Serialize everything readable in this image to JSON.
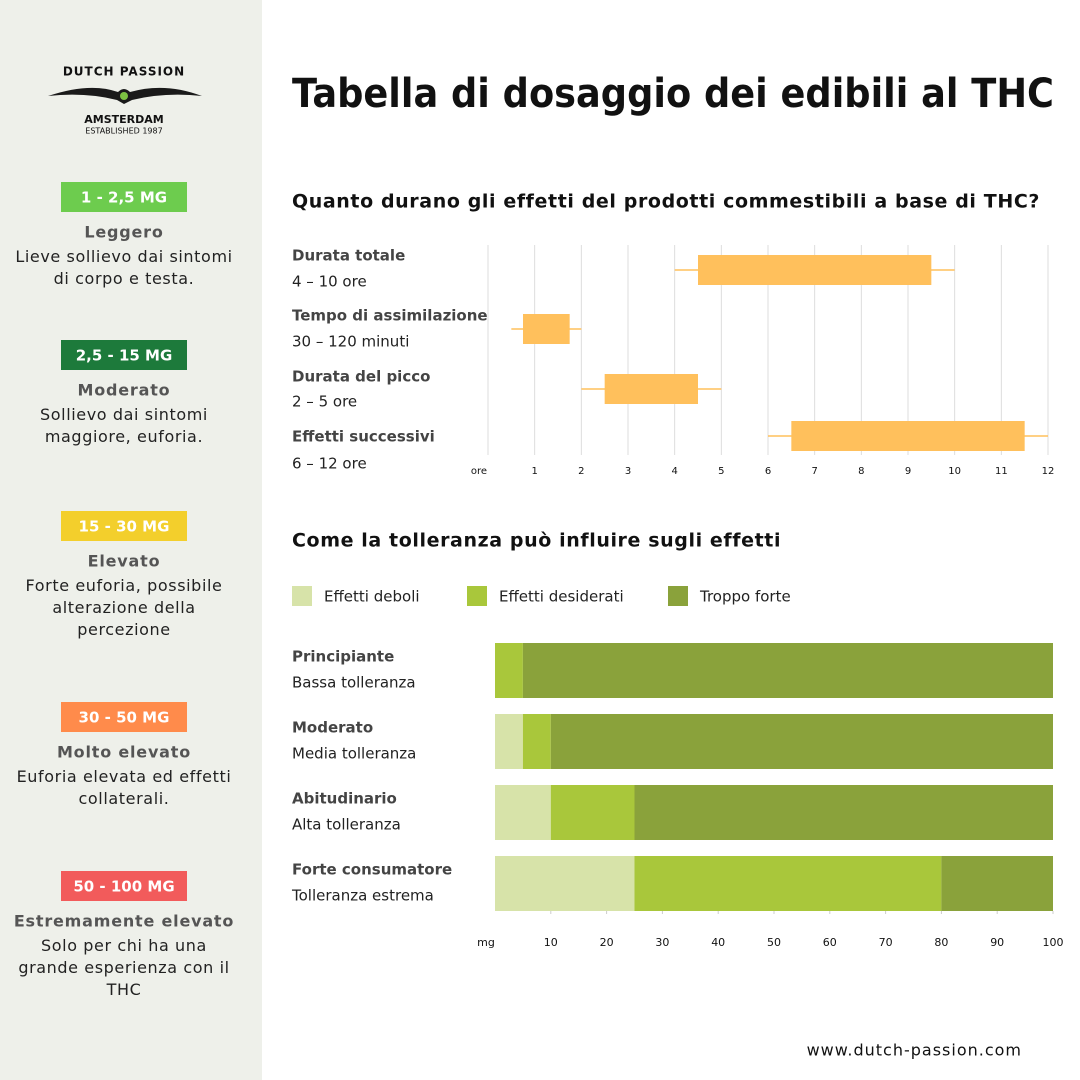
{
  "logo": {
    "brand": "DUTCH PASSION",
    "city": "AMSTERDAM",
    "established": "ESTABLISHED 1987"
  },
  "title": "Tabella di dosaggio dei edibili al THC",
  "sidebar": {
    "levels": [
      {
        "dose": "1 - 2,5 MG",
        "color": "#6dcc4e",
        "name": "Leggero",
        "description": "Lieve sollievo dai sintomi di corpo e testa."
      },
      {
        "dose": "2,5 - 15 MG",
        "color": "#1d7a3b",
        "name": "Moderato",
        "description": "Sollievo dai sintomi maggiore, euforia."
      },
      {
        "dose": "15 - 30 MG",
        "color": "#f3cf2c",
        "name": "Elevato",
        "description": "Forte euforia, possibile alterazione della percezione"
      },
      {
        "dose": "30 - 50 MG",
        "color": "#ff8b4b",
        "name": "Molto elevato",
        "description": "Euforia elevata ed effetti collaterali."
      },
      {
        "dose": "50 - 100 MG",
        "color": "#f25b5b",
        "name": "Estremamente elevato",
        "description": "Solo per chi ha una grande esperienza con il THC"
      }
    ]
  },
  "chart_data": [
    {
      "type": "box",
      "title": "Quanto durano gli effetti del prodotti commestibili a base di THC?",
      "categories": [
        "Durata totale",
        "Tempo di assimilazione",
        "Durata del picco",
        "Effetti successivi"
      ],
      "sublabels": [
        "4 – 10 ore",
        "30 – 120 minuti",
        "2 – 5 ore",
        "6 – 12 ore"
      ],
      "low": [
        4,
        0.5,
        2,
        6
      ],
      "q1": [
        4.5,
        0.75,
        2.5,
        6.5
      ],
      "q3": [
        9.5,
        1.75,
        4.5,
        11.5
      ],
      "high": [
        10,
        2,
        5,
        12
      ],
      "color": "#ffc05c",
      "xlabel": "ore",
      "xlim": [
        0,
        12
      ],
      "xticks": [
        1,
        2,
        3,
        4,
        5,
        6,
        7,
        8,
        9,
        10,
        11,
        12
      ],
      "grid": true
    },
    {
      "type": "stacked-bar",
      "title": "Come la tolleranza può influire sugli effetti",
      "categories": [
        "Principiante",
        "Moderato",
        "Abitudinario",
        "Forte consumatore"
      ],
      "sublabels": [
        "Bassa tolleranza",
        "Media tolleranza",
        "Alta tolleranza",
        "Tolleranza estrema"
      ],
      "series": [
        {
          "name": "Effetti deboli",
          "color": "#d7e3a9",
          "values": [
            0,
            5,
            10,
            25
          ]
        },
        {
          "name": "Effetti desiderati",
          "color": "#a9c73b",
          "values": [
            5,
            5,
            15,
            55
          ]
        },
        {
          "name": "Troppo forte",
          "color": "#8aa23b",
          "values": [
            95,
            90,
            75,
            20
          ]
        }
      ],
      "xlabel": "mg",
      "xlim": [
        0,
        100
      ],
      "xticks": [
        10,
        20,
        30,
        40,
        50,
        60,
        70,
        80,
        90,
        100
      ],
      "legend": "top",
      "grid": false
    }
  ],
  "footer": "www.dutch-passion.com"
}
